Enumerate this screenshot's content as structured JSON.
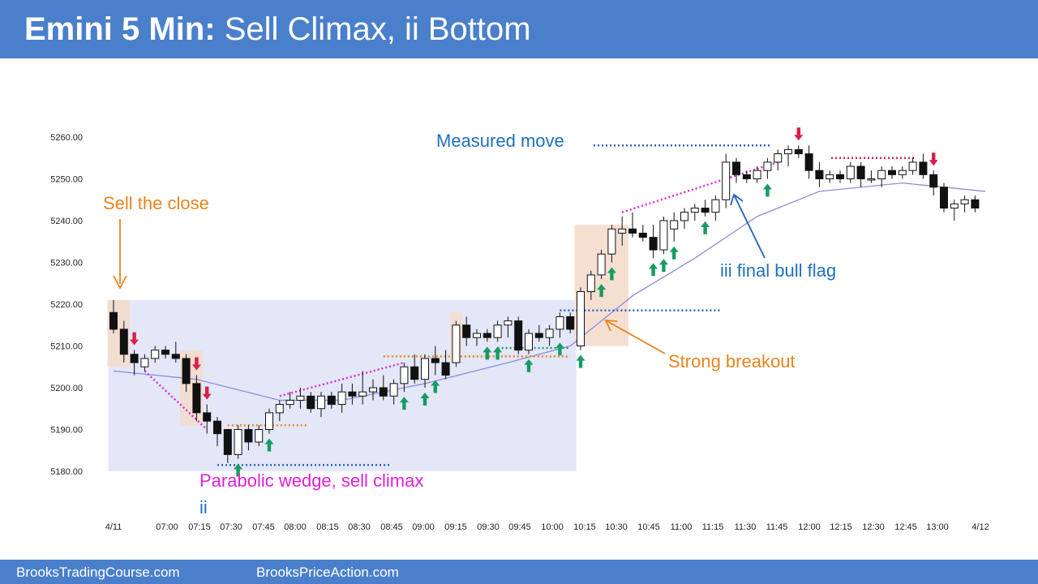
{
  "header": {
    "title_bold": "Emini 5 Min:",
    "title_rest": " Sell Climax, ii Bottom"
  },
  "footer": {
    "left": "BrooksTradingCourse.com",
    "right": "BrooksPriceAction.com"
  },
  "colors": {
    "banner": "#4a7fcb",
    "bull_arrow": "#169b62",
    "bear_arrow": "#d6204b",
    "orange": "#e8841d",
    "magenta": "#e020d8",
    "blue_text": "#1f6fbf",
    "range_box": "#e3e7f8",
    "climax_box": "#f3dccc",
    "ema": "#8c8cdc"
  },
  "chart_data": {
    "type": "candlestick",
    "y_ticks": [
      "5260.00",
      "5250.00",
      "5240.00",
      "5230.00",
      "5220.00",
      "5210.00",
      "5200.00",
      "5190.00",
      "5180.00"
    ],
    "ylim": [
      5178,
      5262
    ],
    "x_ticks": [
      "4/11",
      "07:00",
      "07:15",
      "07:30",
      "07:45",
      "08:00",
      "08:15",
      "08:30",
      "08:45",
      "09:00",
      "09:15",
      "09:30",
      "09:45",
      "10:00",
      "10:15",
      "10:30",
      "10:45",
      "11:00",
      "11:15",
      "11:30",
      "11:45",
      "12:00",
      "12:15",
      "12:30",
      "12:45",
      "13:00",
      "4/12"
    ],
    "candles": [
      [
        5218,
        5221,
        5213,
        5214
      ],
      [
        5214,
        5216,
        5206,
        5208
      ],
      [
        5208,
        5209,
        5203,
        5206
      ],
      [
        5205,
        5208,
        5204,
        5207
      ],
      [
        5207,
        5210,
        5206,
        5209
      ],
      [
        5209,
        5210,
        5207,
        5208
      ],
      [
        5208,
        5211,
        5206,
        5207
      ],
      [
        5207,
        5208,
        5199,
        5201
      ],
      [
        5201,
        5203,
        5192,
        5194
      ],
      [
        5194,
        5196,
        5189,
        5192
      ],
      [
        5192,
        5193,
        5186,
        5189
      ],
      [
        5190,
        5190,
        5182,
        5184
      ],
      [
        5184,
        5191,
        5183,
        5190
      ],
      [
        5190,
        5191,
        5185,
        5187
      ],
      [
        5187,
        5191,
        5186,
        5190
      ],
      [
        5190,
        5195,
        5189,
        5194
      ],
      [
        5194,
        5197,
        5192,
        5196
      ],
      [
        5196,
        5199,
        5195,
        5197
      ],
      [
        5197,
        5200,
        5195,
        5198
      ],
      [
        5198,
        5199,
        5194,
        5195
      ],
      [
        5195,
        5199,
        5193,
        5198
      ],
      [
        5198,
        5199,
        5195,
        5196
      ],
      [
        5196,
        5201,
        5194,
        5199
      ],
      [
        5199,
        5201,
        5196,
        5198
      ],
      [
        5198,
        5204,
        5196,
        5199
      ],
      [
        5199,
        5202,
        5197,
        5200
      ],
      [
        5200,
        5203,
        5197,
        5198
      ],
      [
        5198,
        5202,
        5196,
        5201
      ],
      [
        5201,
        5206,
        5199,
        5205
      ],
      [
        5205,
        5208,
        5201,
        5202
      ],
      [
        5202,
        5208,
        5200,
        5207
      ],
      [
        5207,
        5210,
        5203,
        5206
      ],
      [
        5206,
        5209,
        5202,
        5203
      ],
      [
        5206,
        5216,
        5205,
        5215
      ],
      [
        5215,
        5217,
        5210,
        5212
      ],
      [
        5212,
        5214,
        5210,
        5213
      ],
      [
        5213,
        5214,
        5211,
        5212
      ],
      [
        5212,
        5216,
        5211,
        5215
      ],
      [
        5215,
        5217,
        5212,
        5216
      ],
      [
        5216,
        5217,
        5208,
        5209
      ],
      [
        5209,
        5214,
        5208,
        5213
      ],
      [
        5213,
        5215,
        5211,
        5212
      ],
      [
        5212,
        5215,
        5210,
        5214
      ],
      [
        5214,
        5218,
        5212,
        5217
      ],
      [
        5217,
        5218,
        5213,
        5214
      ],
      [
        5210,
        5224,
        5209,
        5223
      ],
      [
        5223,
        5228,
        5221,
        5227
      ],
      [
        5227,
        5233,
        5226,
        5232
      ],
      [
        5232,
        5239,
        5230,
        5238
      ],
      [
        5237,
        5241,
        5234,
        5238
      ],
      [
        5238,
        5242,
        5236,
        5237
      ],
      [
        5237,
        5239,
        5235,
        5236
      ],
      [
        5236,
        5239,
        5231,
        5233
      ],
      [
        5233,
        5241,
        5232,
        5240
      ],
      [
        5238,
        5242,
        5235,
        5240
      ],
      [
        5240,
        5243,
        5238,
        5242
      ],
      [
        5242,
        5244,
        5240,
        5243
      ],
      [
        5243,
        5245,
        5241,
        5242
      ],
      [
        5242,
        5246,
        5240,
        5245
      ],
      [
        5245,
        5256,
        5243,
        5254
      ],
      [
        5254,
        5255,
        5249,
        5251
      ],
      [
        5251,
        5252,
        5249,
        5250
      ],
      [
        5250,
        5253,
        5249,
        5252
      ],
      [
        5252,
        5255,
        5250,
        5254
      ],
      [
        5254,
        5257,
        5252,
        5256
      ],
      [
        5256,
        5258,
        5253,
        5257
      ],
      [
        5257,
        5258,
        5255,
        5256
      ],
      [
        5256,
        5258,
        5250,
        5252
      ],
      [
        5252,
        5254,
        5248,
        5250
      ],
      [
        5250,
        5252,
        5249,
        5251
      ],
      [
        5251,
        5252,
        5249,
        5250
      ],
      [
        5250,
        5254,
        5249,
        5253
      ],
      [
        5253,
        5254,
        5248,
        5250
      ],
      [
        5250,
        5252,
        5249,
        5250
      ],
      [
        5250,
        5253,
        5248,
        5252
      ],
      [
        5252,
        5253,
        5250,
        5251
      ],
      [
        5251,
        5253,
        5250,
        5252
      ],
      [
        5252,
        5255,
        5251,
        5254
      ],
      [
        5254,
        5256,
        5250,
        5251
      ],
      [
        5251,
        5252,
        5246,
        5248
      ],
      [
        5248,
        5249,
        5242,
        5243
      ],
      [
        5243,
        5245,
        5240,
        5244
      ],
      [
        5244,
        5246,
        5242,
        5245
      ],
      [
        5245,
        5246,
        5242,
        5243
      ]
    ],
    "ema": [
      [
        0,
        5204
      ],
      [
        8,
        5202
      ],
      [
        16,
        5197
      ],
      [
        22,
        5197
      ],
      [
        30,
        5201
      ],
      [
        38,
        5206
      ],
      [
        44,
        5210
      ],
      [
        50,
        5222
      ],
      [
        56,
        5231
      ],
      [
        62,
        5241
      ],
      [
        68,
        5247
      ],
      [
        76,
        5249
      ],
      [
        84,
        5247
      ]
    ],
    "annotations": {
      "sell_the_close": "Sell the close",
      "measured_move": "Measured move",
      "iii_final_bull_flag": "iii final bull flag",
      "strong_breakout": "Strong breakout",
      "parabolic_wedge": "Parabolic wedge, sell climax",
      "ii": "ii"
    },
    "bull_arrow_bars": [
      12,
      15,
      28,
      30,
      31,
      36,
      37,
      40,
      43,
      45,
      47,
      48,
      52,
      53,
      54,
      57,
      63
    ],
    "bear_arrow_bars": [
      2,
      8,
      9,
      66,
      79
    ],
    "shaded_ranges": [
      {
        "kind": "trading_range",
        "from_bar": 0,
        "to_bar": 44,
        "low": 5180,
        "high": 5221
      },
      {
        "kind": "climax_bar",
        "from_bar": 0,
        "to_bar": 1,
        "low": 5205,
        "high": 5221
      },
      {
        "kind": "climax_bar",
        "from_bar": 7,
        "to_bar": 8,
        "low": 5191,
        "high": 5209
      },
      {
        "kind": "climax_bar",
        "from_bar": 33,
        "to_bar": 33,
        "low": 5206,
        "high": 5218
      },
      {
        "kind": "breakout",
        "from_bar": 45,
        "to_bar": 48,
        "low": 5210,
        "high": 5239
      }
    ]
  }
}
